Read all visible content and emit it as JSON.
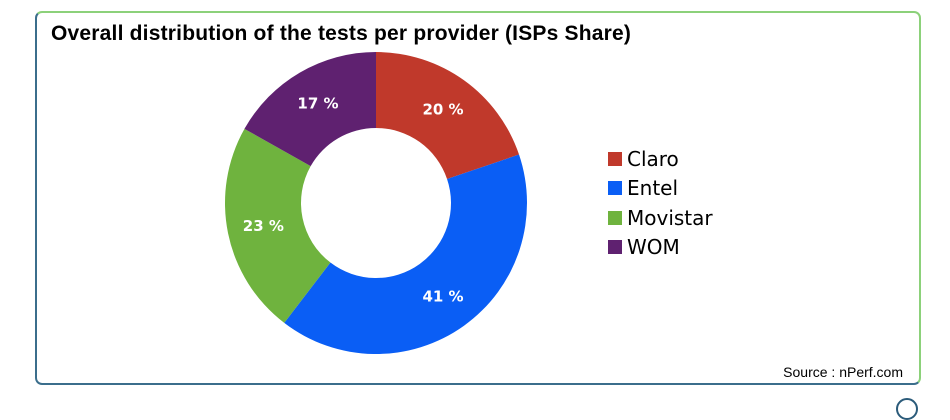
{
  "colors": {
    "border_start": "#3b6e8c",
    "border_end": "#8cd17a"
  },
  "chart_data": {
    "type": "pie",
    "title": "Overall distribution of the tests per provider (ISPs Share)",
    "donut": true,
    "categories": [
      "Claro",
      "Entel",
      "Movistar",
      "WOM"
    ],
    "values": [
      20,
      41,
      23,
      17
    ],
    "labels": [
      "20 %",
      "41 %",
      "23 %",
      "17 %"
    ],
    "colors": [
      "#c0392b",
      "#0a5ef5",
      "#6fb33e",
      "#5f2170"
    ],
    "legend_position": "right",
    "start": "top",
    "direction": "clockwise"
  },
  "source": "Source : nPerf.com"
}
